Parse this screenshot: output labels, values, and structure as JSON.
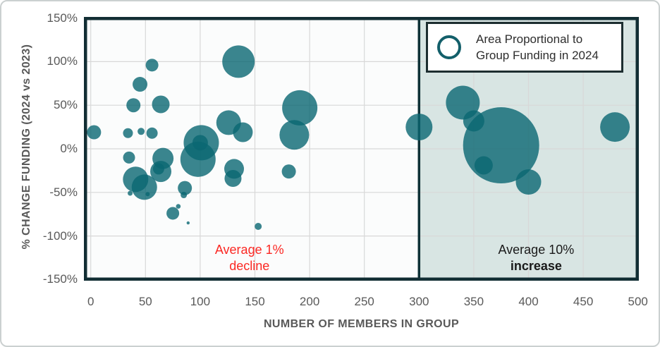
{
  "chart_data": {
    "type": "scatter",
    "xlabel": "NUMBER OF MEMBERS IN GROUP",
    "ylabel": "% CHANGE FUNDING (2024 vs 2023)",
    "xlim": [
      0,
      500
    ],
    "ylim": [
      -150,
      150
    ],
    "grid": true,
    "x_ticks": [
      0,
      50,
      100,
      150,
      200,
      250,
      300,
      350,
      400,
      450,
      500
    ],
    "y_ticks": [
      {
        "v": 150,
        "label": "150%"
      },
      {
        "v": 100,
        "label": "100%"
      },
      {
        "v": 50,
        "label": "50%"
      },
      {
        "v": 0,
        "label": "0%"
      },
      {
        "v": -50,
        "label": "-50%"
      },
      {
        "v": -100,
        "label": "-100%"
      },
      {
        "v": -150,
        "label": "-150%"
      }
    ],
    "y_gridlines": [
      100,
      50,
      0,
      -50,
      -100
    ],
    "shaded_region": {
      "x_start": 300,
      "x_end": 500
    },
    "legend": {
      "line1": "Area Proportional to",
      "line2": "Group Funding in 2024",
      "note": "bubble area is proportional to group funding in 2024"
    },
    "annotations": [
      {
        "line1": "Average 1%",
        "line2": "decline",
        "x": 145,
        "y": -125,
        "color": "#fb2823",
        "bold_line2": false
      },
      {
        "line1": "Average 10%",
        "line2": "increase",
        "x": 407,
        "y": -125,
        "color": "#1a1a1a",
        "bold_line2": true
      }
    ],
    "points": [
      {
        "x": 3,
        "y": 19,
        "r": 10
      },
      {
        "x": 34,
        "y": 18,
        "r": 7
      },
      {
        "x": 46,
        "y": 20,
        "r": 5
      },
      {
        "x": 56,
        "y": 18,
        "r": 8
      },
      {
        "x": 56,
        "y": 96,
        "r": 9
      },
      {
        "x": 45,
        "y": 74,
        "r": 10.5
      },
      {
        "x": 39,
        "y": 50,
        "r": 10
      },
      {
        "x": 64,
        "y": 51,
        "r": 12.5
      },
      {
        "x": 135,
        "y": 100,
        "r": 23
      },
      {
        "x": 35,
        "y": -10,
        "r": 8.5
      },
      {
        "x": 41,
        "y": -35,
        "r": 18
      },
      {
        "x": 49,
        "y": -44,
        "r": 18
      },
      {
        "x": 36,
        "y": -51,
        "r": 3.5
      },
      {
        "x": 52,
        "y": -52,
        "r": 3
      },
      {
        "x": 66,
        "y": -11,
        "r": 15
      },
      {
        "x": 64,
        "y": -26,
        "r": 15
      },
      {
        "x": 62,
        "y": -23,
        "r": 8
      },
      {
        "x": 101,
        "y": 7,
        "r": 25
      },
      {
        "x": 98,
        "y": -12,
        "r": 25
      },
      {
        "x": 100,
        "y": 7,
        "r": 11
      },
      {
        "x": 86,
        "y": -45,
        "r": 10
      },
      {
        "x": 85,
        "y": -53,
        "r": 4.5
      },
      {
        "x": 80,
        "y": -66,
        "r": 3.3
      },
      {
        "x": 75,
        "y": -74,
        "r": 9
      },
      {
        "x": 89,
        "y": -85,
        "r": 2.2
      },
      {
        "x": 126,
        "y": 30,
        "r": 17.5
      },
      {
        "x": 139,
        "y": 19,
        "r": 14
      },
      {
        "x": 131,
        "y": -23,
        "r": 14
      },
      {
        "x": 130,
        "y": -34,
        "r": 12
      },
      {
        "x": 153,
        "y": -89,
        "r": 5
      },
      {
        "x": 191,
        "y": 47,
        "r": 25
      },
      {
        "x": 186,
        "y": 16,
        "r": 21
      },
      {
        "x": 181,
        "y": -26,
        "r": 10
      },
      {
        "x": 300,
        "y": 25,
        "r": 19
      },
      {
        "x": 340,
        "y": 53,
        "r": 24
      },
      {
        "x": 350,
        "y": 32,
        "r": 15
      },
      {
        "x": 375,
        "y": 4,
        "r": 54
      },
      {
        "x": 359,
        "y": -19,
        "r": 13
      },
      {
        "x": 400,
        "y": -38,
        "r": 18
      },
      {
        "x": 479,
        "y": 25,
        "r": 21
      }
    ]
  },
  "colors": {
    "bubble_fill": "#0a6672",
    "bubble_opacity": 0.8,
    "shade": "#d8e5e3",
    "plot_bg": "#fbfcfc",
    "frame": "#122e34",
    "divider": "#0e3136",
    "grid": "#d8d8d8",
    "tick_text": "#595959",
    "legend_ring": "#135f6a",
    "legend_border": "#1d2e30"
  }
}
